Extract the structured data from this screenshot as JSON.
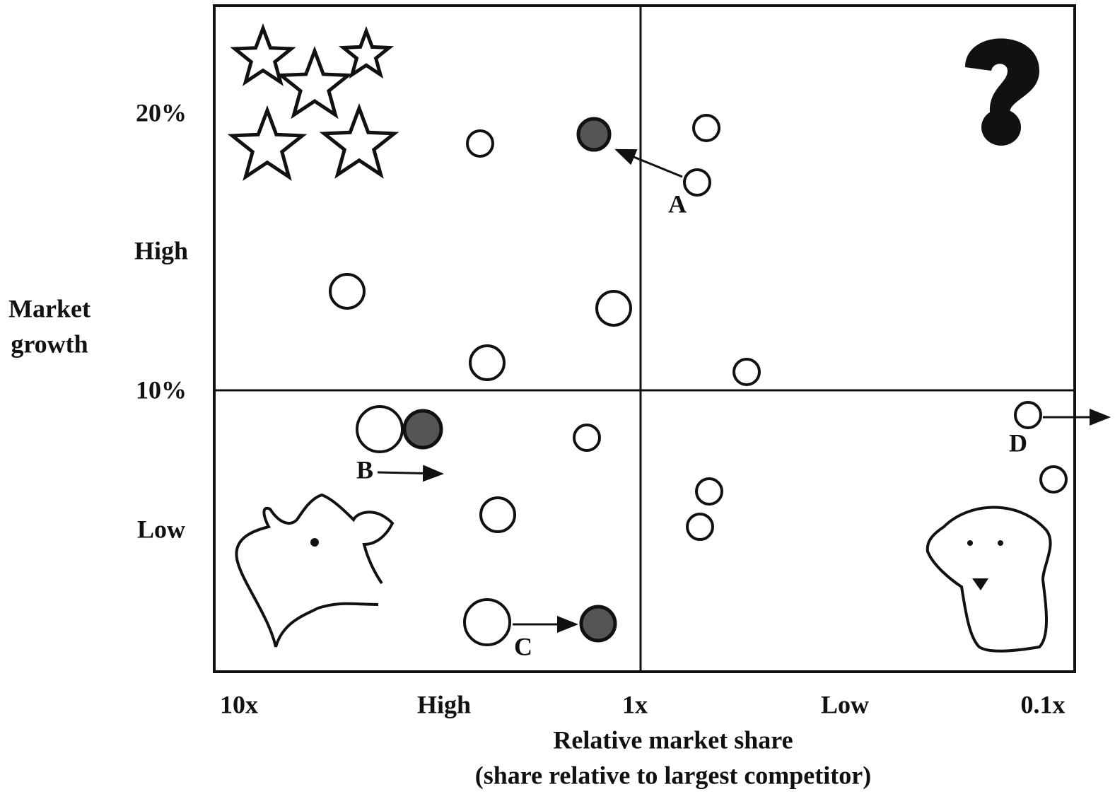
{
  "y_axis": {
    "title_lines": [
      "Market",
      "growth"
    ],
    "labels": [
      "20%",
      "High",
      "10%",
      "Low"
    ]
  },
  "x_axis": {
    "labels": [
      "10x",
      "High",
      "1x",
      "Low",
      "0.1x"
    ],
    "title": "Relative market share",
    "subtitle": "(share relative to largest competitor)"
  },
  "point_labels": [
    "A",
    "B",
    "C",
    "D"
  ]
}
